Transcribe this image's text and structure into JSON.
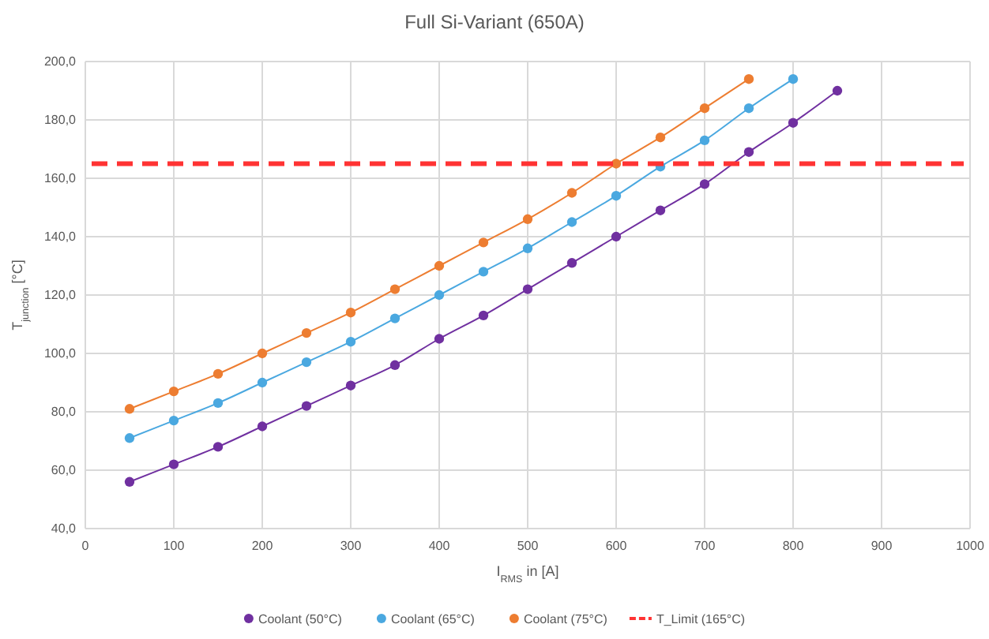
{
  "chart_data": {
    "type": "line",
    "title": "Full Si-Variant (650A)",
    "xlabel": "I$_{RMS}$ in [A]",
    "ylabel": "T$_{junction}$ [°C]",
    "xlim": [
      0,
      1000
    ],
    "xticks": [
      0,
      100,
      200,
      300,
      400,
      500,
      600,
      700,
      800,
      900,
      1000
    ],
    "ylim": [
      40,
      200
    ],
    "yticks": [
      {
        "value": 40,
        "label": "40,0"
      },
      {
        "value": 60,
        "label": "60,0"
      },
      {
        "value": 80,
        "label": "80,0"
      },
      {
        "value": 100,
        "label": "100,0"
      },
      {
        "value": 120,
        "label": "120,0"
      },
      {
        "value": 140,
        "label": "140,0"
      },
      {
        "value": 160,
        "label": "160,0"
      },
      {
        "value": 180,
        "label": "180,0"
      },
      {
        "value": 200,
        "label": "200,0"
      }
    ],
    "grid": true,
    "legend": "bottom",
    "marker": "circle",
    "line_style": "solid",
    "series": [
      {
        "name": "Coolant (50°C)",
        "color": "#7030a0",
        "x": [
          50,
          100,
          150,
          200,
          250,
          300,
          350,
          400,
          450,
          500,
          550,
          600,
          650,
          700,
          750,
          800,
          850
        ],
        "values": [
          56,
          62,
          68,
          75,
          82,
          89,
          96,
          105,
          113,
          122,
          131,
          140,
          149,
          158,
          169,
          179,
          190
        ]
      },
      {
        "name": "Coolant (65°C)",
        "color": "#4aa8e0",
        "x": [
          50,
          100,
          150,
          200,
          250,
          300,
          350,
          400,
          450,
          500,
          550,
          600,
          650,
          700,
          750,
          800
        ],
        "values": [
          71,
          77,
          83,
          90,
          97,
          104,
          112,
          120,
          128,
          136,
          145,
          154,
          164,
          173,
          184,
          194
        ]
      },
      {
        "name": "Coolant (75°C)",
        "color": "#ed7d31",
        "x": [
          50,
          100,
          150,
          200,
          250,
          300,
          350,
          400,
          450,
          500,
          550,
          600,
          650,
          700,
          750
        ],
        "values": [
          81,
          87,
          93,
          100,
          107,
          114,
          122,
          130,
          138,
          146,
          155,
          165,
          174,
          184,
          194
        ]
      }
    ],
    "ref_lines": [
      {
        "axis": "y",
        "value": 165,
        "label": "T_Limit (165°C)",
        "color": "#ff3333",
        "line_style": "dashed"
      }
    ]
  }
}
